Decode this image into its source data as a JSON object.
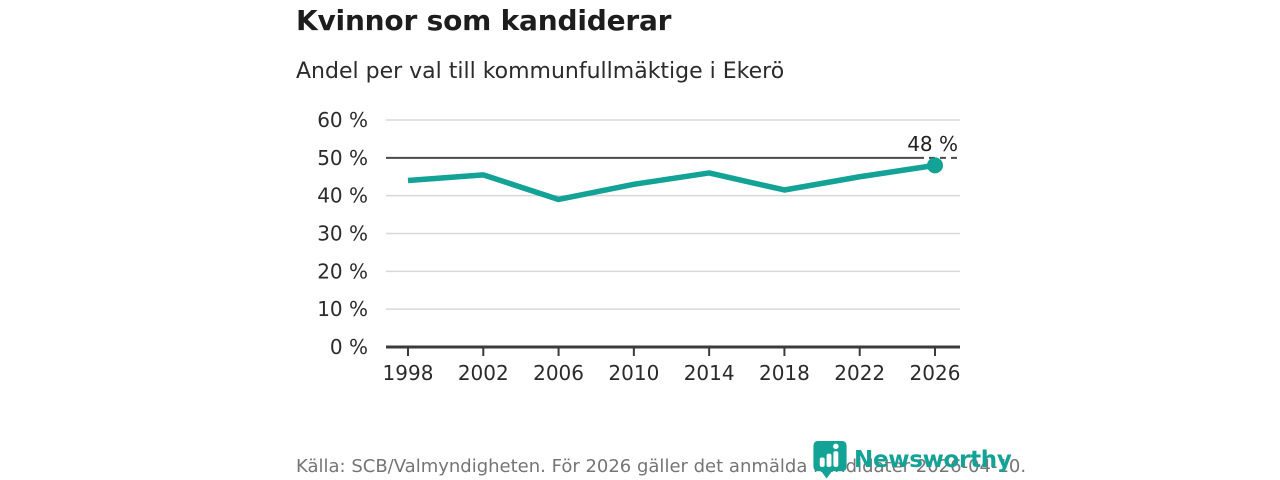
{
  "header": {
    "title": "Kvinnor som kandiderar",
    "subtitle": "Andel per val till kommunfullmäktige i Ekerö"
  },
  "chart_data": {
    "type": "line",
    "title": "Kvinnor som kandiderar",
    "subtitle": "Andel per val till kommunfullmäktige i Ekerö",
    "x": [
      1998,
      2002,
      2006,
      2010,
      2014,
      2018,
      2022,
      2026
    ],
    "values": [
      44,
      45.5,
      39,
      43,
      46,
      41.5,
      45,
      48
    ],
    "ylim": [
      0,
      60
    ],
    "ytick_step": 10,
    "ytick_suffix": " %",
    "grid": true,
    "legend": "none",
    "reference_line": 50,
    "last_point_label": "48 %",
    "xlabel": "",
    "ylabel": ""
  },
  "footer": {
    "source": "Källa: SCB/Valmyndigheten. För 2026 gäller det anmälda kandidater 2026-04-10."
  },
  "logo": {
    "wordmark": "Newsworthy",
    "icon": "newsworthy-bubble-barchart-icon"
  },
  "colors": {
    "accent": "#13a296",
    "grid_light": "#d8d8d8",
    "axis_dark": "#3b3b3b",
    "reference_dark": "#4a4a4a",
    "text_dark": "#1d1d1d",
    "text_medium": "#2b2b2b",
    "text_muted": "#757575"
  }
}
